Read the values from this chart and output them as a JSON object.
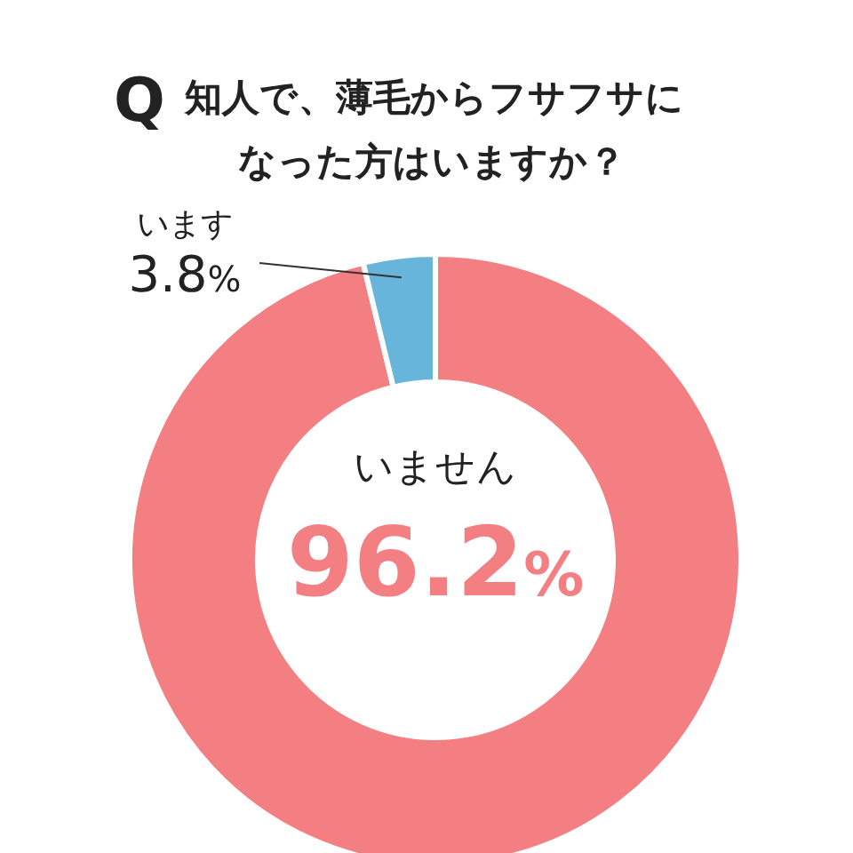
{
  "chart_data": {
    "type": "donut",
    "title": "Q 知人で、薄毛からフサフサになった方はいますか？",
    "categories": [
      "いません",
      "います"
    ],
    "values": [
      96.2,
      3.8
    ],
    "colors": [
      "#f47f82",
      "#67b5da"
    ],
    "value_labels": [
      "96.2%",
      "3.8%"
    ]
  }
}
